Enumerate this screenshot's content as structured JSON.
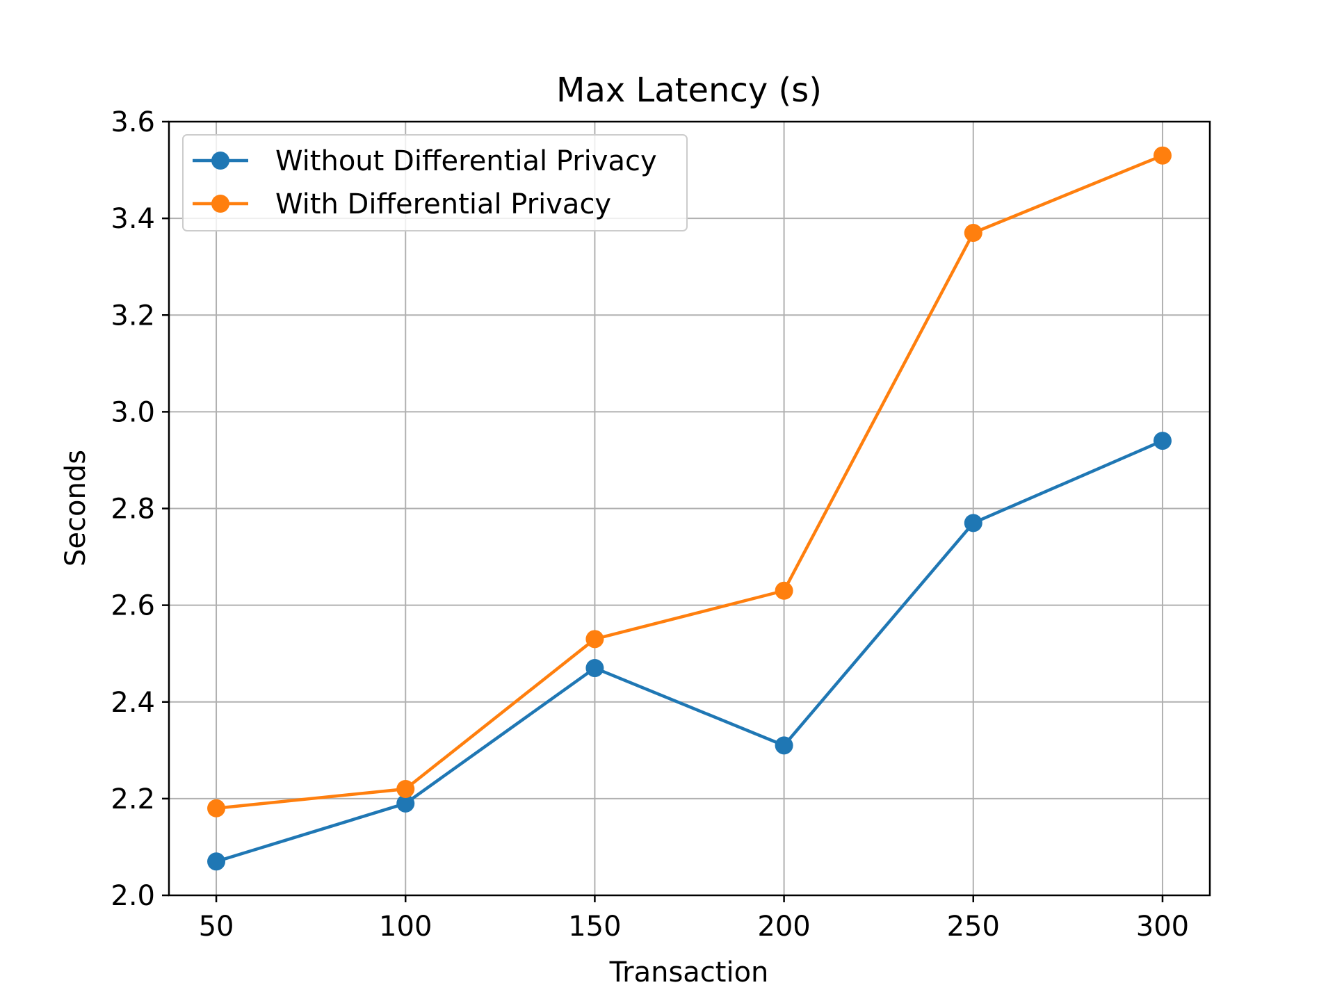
{
  "chart_data": {
    "type": "line",
    "title": "Max Latency (s)",
    "xlabel": "Transaction",
    "ylabel": "Seconds",
    "x": [
      50,
      100,
      150,
      200,
      250,
      300
    ],
    "xlim": [
      37.5,
      312.5
    ],
    "ylim": [
      2.0,
      3.6
    ],
    "xticks": [
      "50",
      "100",
      "150",
      "200",
      "250",
      "300"
    ],
    "yticks": [
      "2.0",
      "2.2",
      "2.4",
      "2.6",
      "2.8",
      "3.0",
      "3.2",
      "3.4",
      "3.6"
    ],
    "grid": true,
    "legend_position": "upper-left",
    "series": [
      {
        "name": "Without Differential Privacy",
        "color": "#1f77b4",
        "marker": "circle",
        "values": [
          2.07,
          2.19,
          2.47,
          2.31,
          2.77,
          2.94
        ]
      },
      {
        "name": "With Differential Privacy",
        "color": "#ff7f0e",
        "marker": "circle",
        "values": [
          2.18,
          2.22,
          2.53,
          2.63,
          3.37,
          3.53
        ]
      }
    ]
  }
}
